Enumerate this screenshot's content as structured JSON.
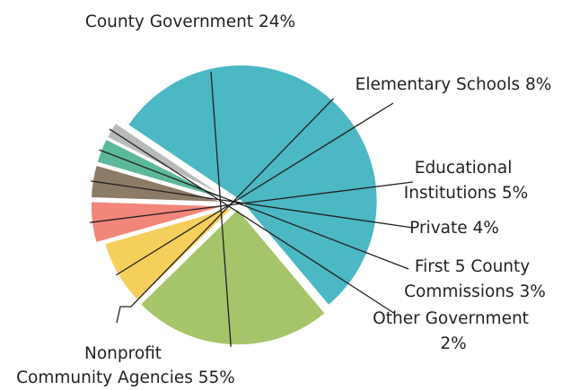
{
  "chart_data": {
    "type": "pie",
    "title": "",
    "slices": [
      {
        "name": "Nonprofit Community Agencies",
        "value": 55,
        "label_lines": [
          "Nonprofit",
          "Community Agencies 55%"
        ],
        "color": "#4bb8c4"
      },
      {
        "name": "County Government",
        "value": 24,
        "label_lines": [
          "County Government 24%"
        ],
        "color": "#a6c46a"
      },
      {
        "name": "Elementary Schools",
        "value": 8,
        "label_lines": [
          "Elementary Schools 8%"
        ],
        "color": "#f4cf5c"
      },
      {
        "name": "Educational Institutions",
        "value": 5,
        "label_lines": [
          "Educational",
          "Institutions 5%"
        ],
        "color": "#f2867a"
      },
      {
        "name": "Private",
        "value": 4,
        "label_lines": [
          "Private 4%"
        ],
        "color": "#8c7b66"
      },
      {
        "name": "First 5 County Commissions",
        "value": 3,
        "label_lines": [
          "First 5 County",
          "Commissions 3%"
        ],
        "color": "#5cb89a"
      },
      {
        "name": "Other Government",
        "value": 2,
        "label_lines": [
          "Other Government",
          "2%"
        ],
        "color": "#b7b9bb"
      }
    ],
    "legend": "none"
  }
}
